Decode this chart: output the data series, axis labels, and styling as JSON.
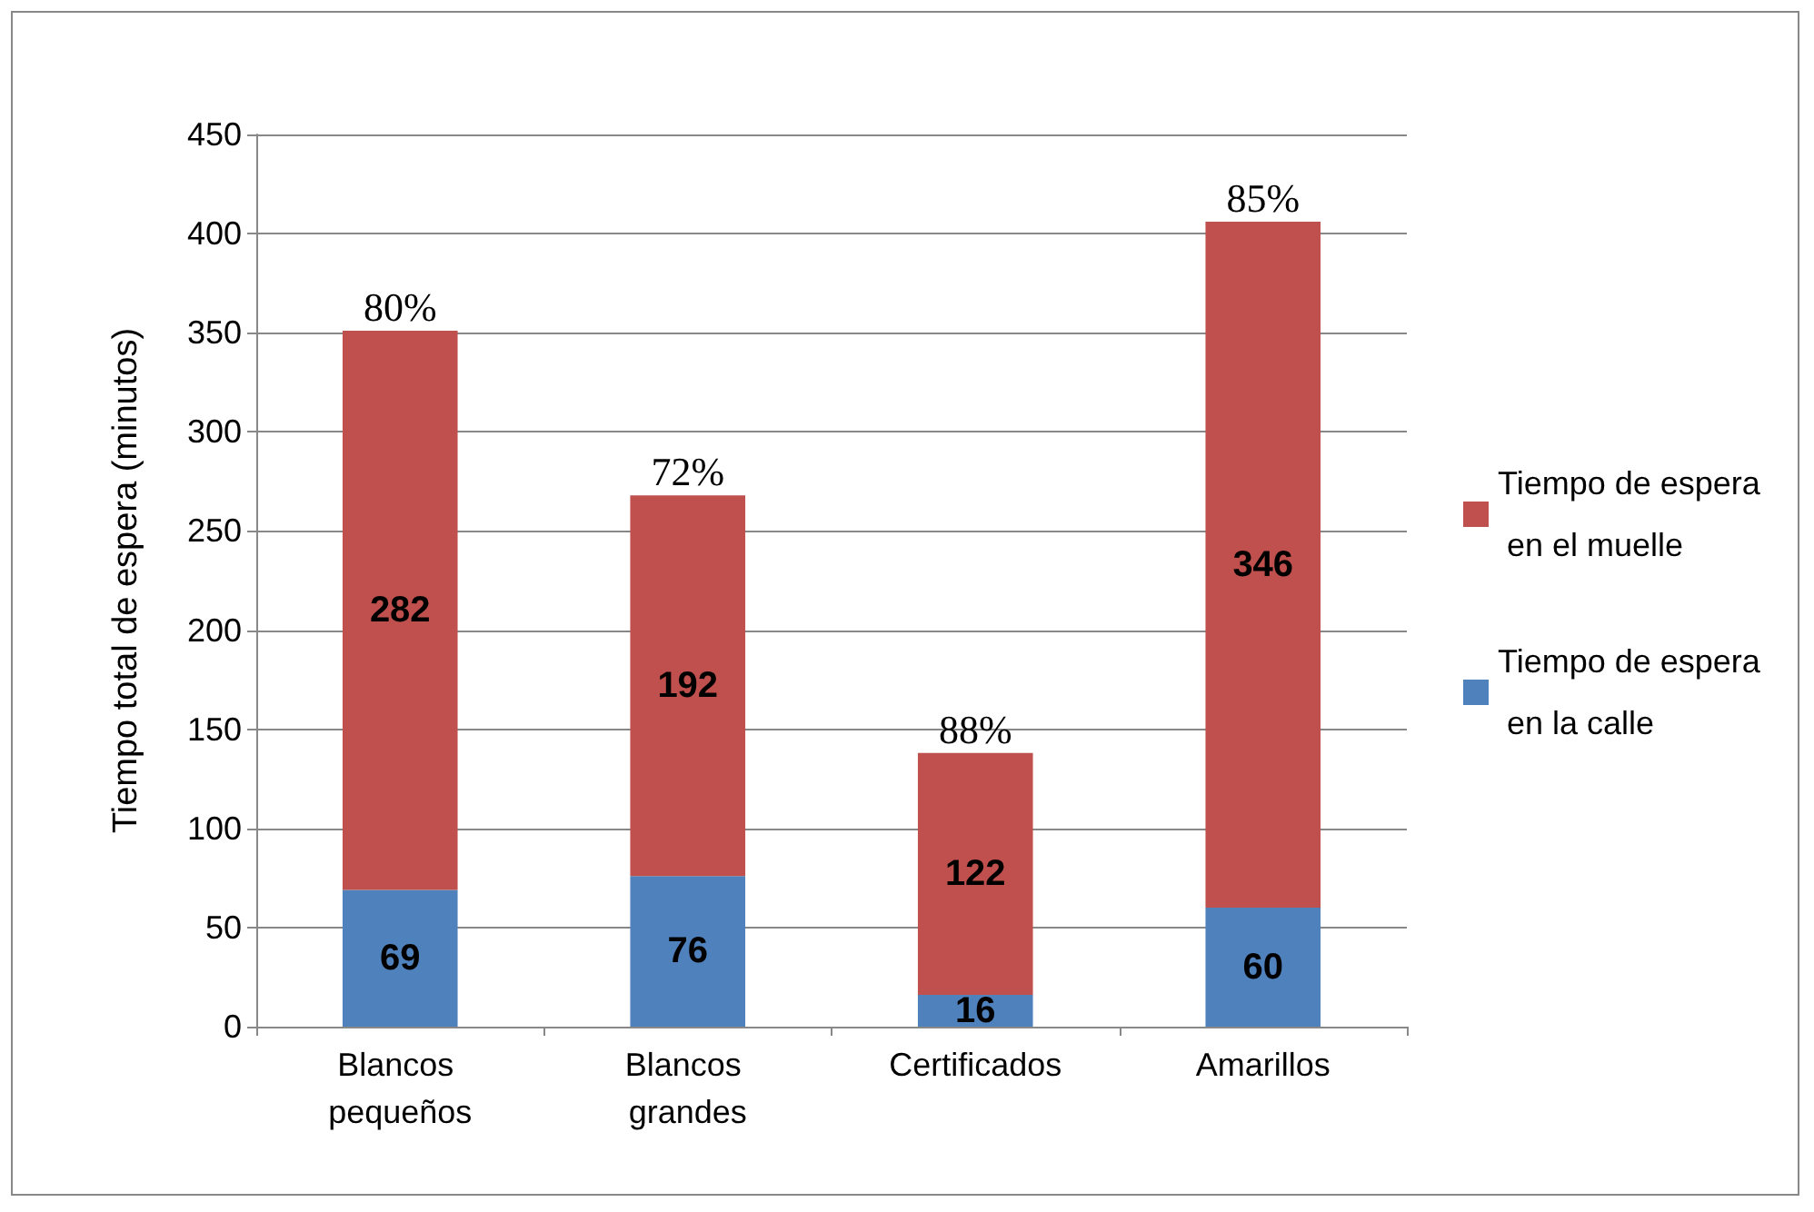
{
  "chart_data": {
    "type": "bar",
    "stacked": true,
    "ylabel": "Tiempo total de espera (minutos)",
    "categories": [
      "Blancos pequeños",
      "Blancos grandes",
      "Certificados",
      "Amarillos"
    ],
    "series": [
      {
        "name": "Tiempo de espera en la calle",
        "color": "#4f81bd",
        "values": [
          69,
          76,
          16,
          60
        ]
      },
      {
        "name": "Tiempo de espera en el muelle",
        "color": "#c0504d",
        "values": [
          282,
          192,
          122,
          346
        ]
      }
    ],
    "ylim": [
      0,
      450
    ],
    "yticks": [
      0,
      50,
      100,
      150,
      200,
      250,
      300,
      350,
      400,
      450
    ],
    "grid": "y",
    "legend": "right",
    "data_labels": true,
    "annotations": [
      {
        "text": "80%",
        "x": "Blancos pequeños",
        "y": 351
      },
      {
        "text": "72%",
        "x": "Blancos grandes",
        "y": 268
      },
      {
        "text": "88%",
        "x": "Certificados",
        "y": 138
      },
      {
        "text": "85%",
        "x": "Amarillos",
        "y": 406
      }
    ]
  }
}
